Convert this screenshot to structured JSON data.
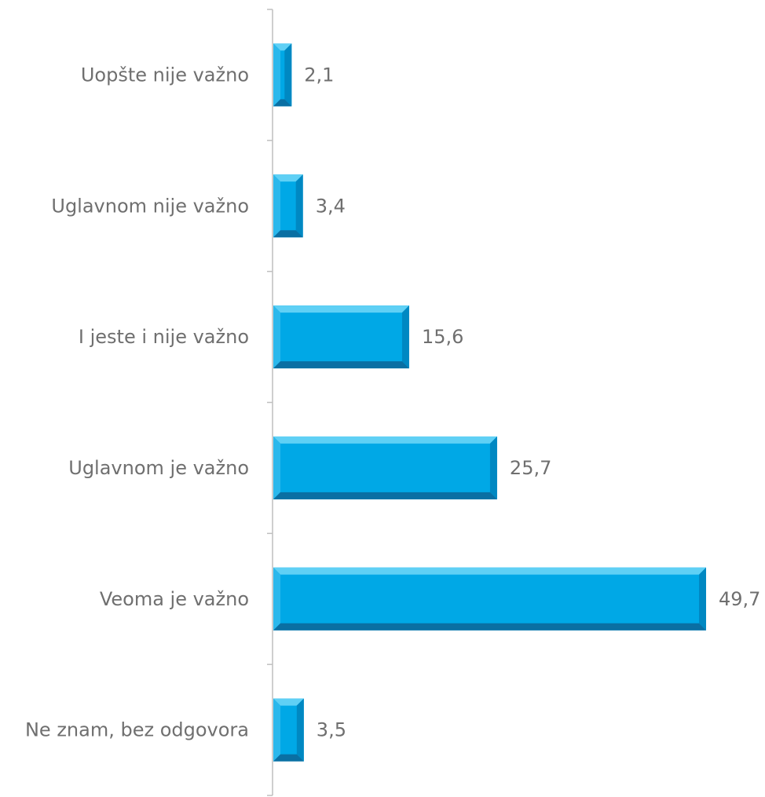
{
  "chart_data": {
    "type": "bar",
    "orientation": "horizontal",
    "categories": [
      "Uopšte nije važno",
      "Uglavnom nije važno",
      "I jeste i nije važno",
      "Uglavnom je važno",
      "Veoma je važno",
      "Ne znam, bez odgovora"
    ],
    "values": [
      2.1,
      3.4,
      15.6,
      25.7,
      49.7,
      3.5
    ],
    "value_labels": [
      "2,1",
      "3,4",
      "15,6",
      "25,7",
      "49,7",
      "3,5"
    ],
    "title": "",
    "xlabel": "",
    "ylabel": "",
    "xlim": [
      0,
      50
    ],
    "grid": false,
    "legend": "none",
    "colors": {
      "bar": "#00A8E6",
      "bar_top": "#5FD0F5",
      "bar_left": "#2BB8EC",
      "bar_right": "#0088C2",
      "bar_bottom": "#0A6FA3",
      "axis": "#BFBFBF",
      "text": "#6F6F6F"
    }
  }
}
